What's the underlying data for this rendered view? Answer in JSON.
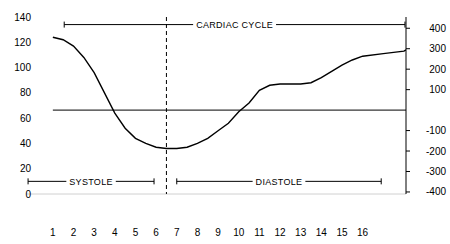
{
  "chart_data": {
    "type": "line",
    "x": [
      1,
      1.5,
      2,
      2.5,
      3,
      3.5,
      4,
      4.5,
      5,
      5.5,
      6,
      6.5,
      7,
      7.5,
      8,
      8.5,
      9,
      9.5,
      10,
      10.5,
      11,
      11.5,
      12,
      13,
      13.5,
      14,
      14.5,
      15,
      15.5,
      16,
      17,
      17.5,
      18,
      18.1
    ],
    "values": [
      124,
      122,
      117,
      108,
      96,
      80,
      64,
      52,
      44,
      40,
      37,
      36,
      36,
      37,
      40,
      44,
      50,
      56,
      65,
      72,
      82,
      86,
      87,
      87,
      88,
      92,
      97,
      102,
      106,
      109,
      111,
      112,
      113,
      114
    ],
    "color": "#000000",
    "xlim": [
      -0.3,
      18.1
    ],
    "xticks": [
      1,
      2,
      3,
      4,
      5,
      6,
      7,
      8,
      9,
      10,
      11,
      12,
      13,
      14,
      15,
      16
    ],
    "ylim": [
      0,
      140
    ],
    "yticks": [
      0,
      20,
      40,
      60,
      80,
      100,
      120,
      140
    ],
    "y2lim": [
      -410,
      455
    ],
    "y2ticks": [
      -400,
      -300,
      -200,
      -100,
      100,
      200,
      300,
      400
    ],
    "reference_lines": [
      {
        "value": 0,
        "axis": "y2"
      },
      {
        "x": 6.5,
        "line_style": "dashed"
      }
    ],
    "annotations": [
      {
        "text": "CARDIAC CYCLE",
        "x": [
          1.55,
          18.05
        ],
        "y": 134
      },
      {
        "text": "SYSTOLE",
        "x": [
          -0.2,
          5.9
        ],
        "y": 10
      },
      {
        "text": "DIASTOLE",
        "x": [
          7,
          16.9
        ],
        "y": 10
      }
    ]
  }
}
